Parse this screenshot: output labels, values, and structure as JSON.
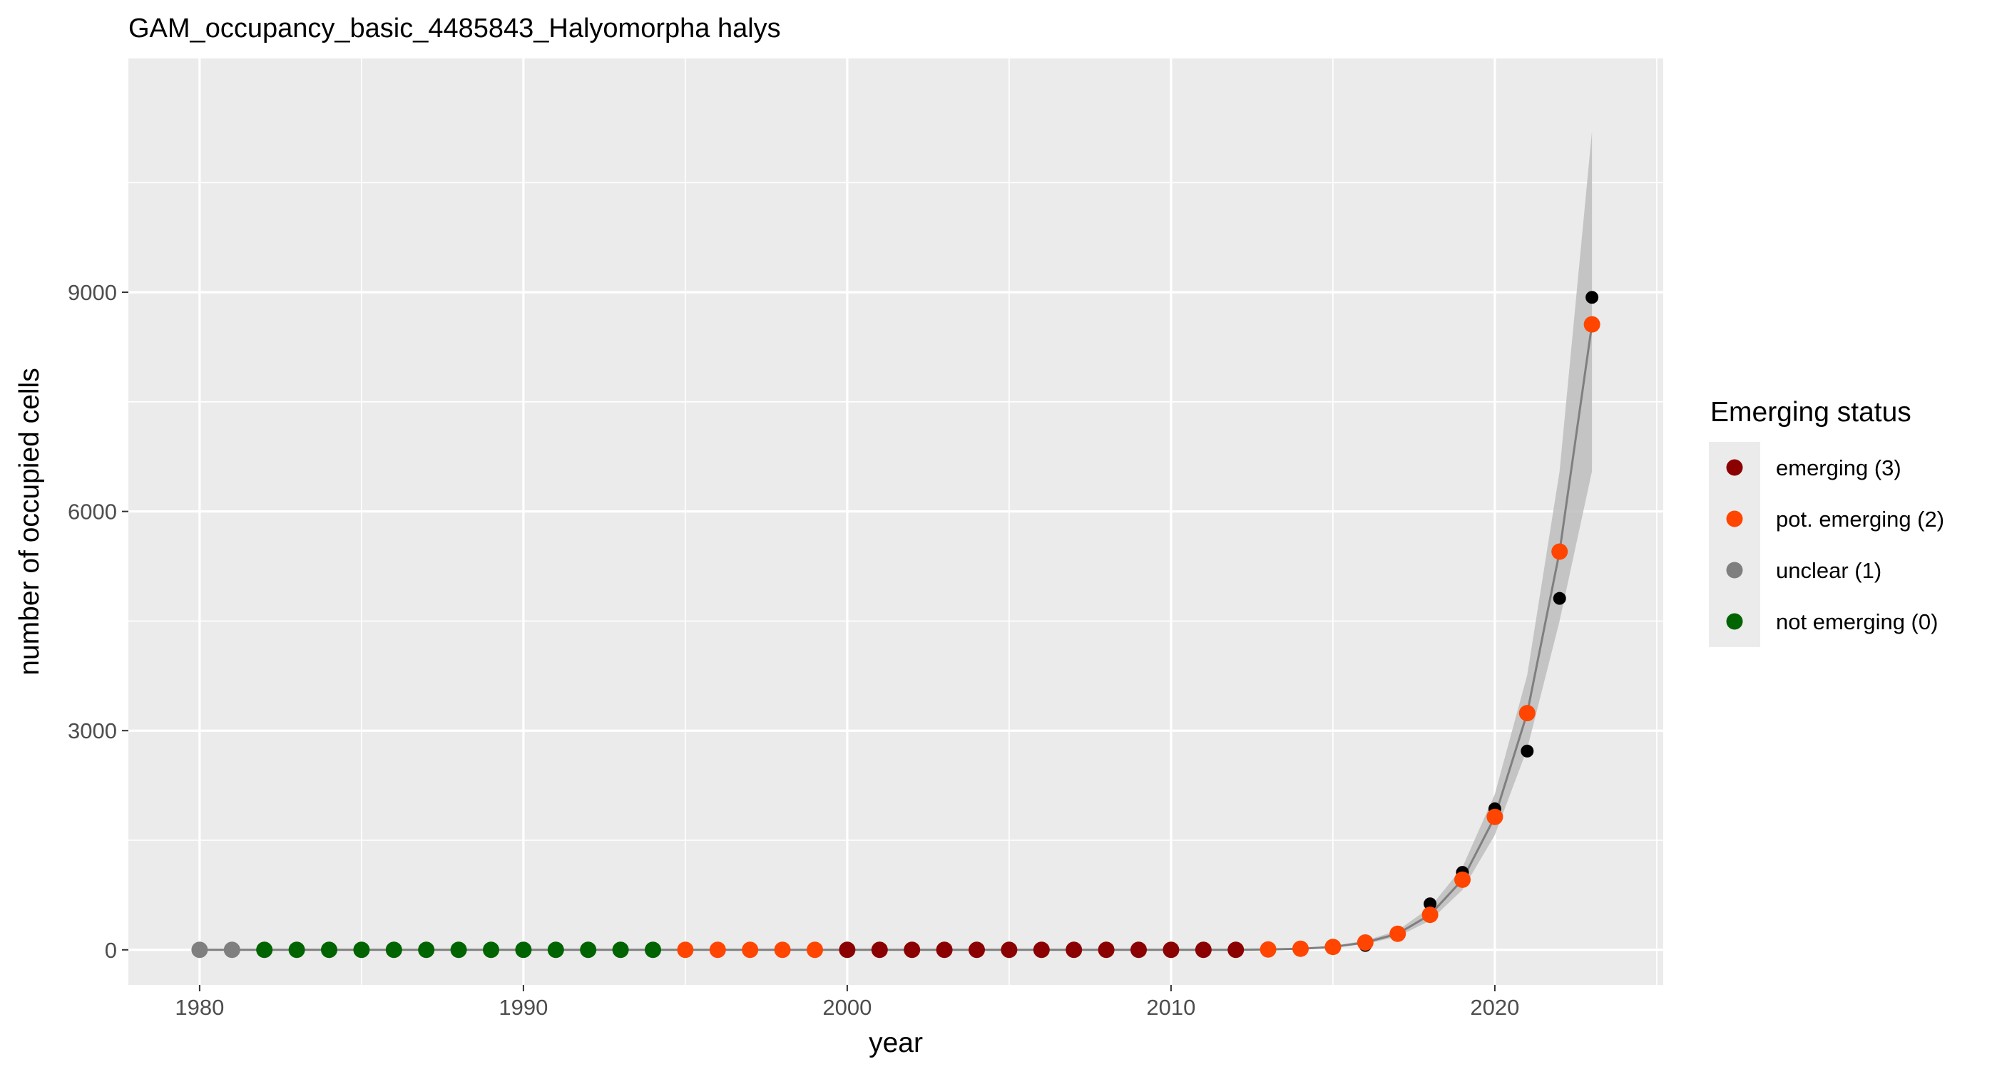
{
  "chart_data": {
    "type": "scatter",
    "title": "GAM_occupancy_basic_4485843_Halyomorpha halys",
    "xlabel": "year",
    "ylabel": "number of occupied cells",
    "xlim": [
      1977.8,
      2025.2
    ],
    "ylim": [
      -480,
      12200
    ],
    "x_ticks": [
      1980,
      1990,
      2000,
      2010,
      2020
    ],
    "y_ticks": [
      0,
      3000,
      6000,
      9000
    ],
    "grid": true,
    "legend": {
      "title": "Emerging status",
      "position": "right",
      "entries": [
        {
          "label": "emerging (3)",
          "color": "#8b0000"
        },
        {
          "label": "pot. emerging (2)",
          "color": "#ff4500"
        },
        {
          "label": "unclear (1)",
          "color": "#7f7f7f"
        },
        {
          "label": "not emerging (0)",
          "color": "#006400"
        }
      ]
    },
    "status_colors": {
      "3": "#8b0000",
      "2": "#ff4500",
      "1": "#7f7f7f",
      "0": "#006400"
    },
    "observed_color": "#000000",
    "fit_color": "#7f7f7f",
    "band_color": "#bdbdbd",
    "observed": {
      "x": [
        1980,
        1981,
        1982,
        1983,
        1984,
        1985,
        1986,
        1987,
        1988,
        1989,
        1990,
        1991,
        1992,
        1993,
        1994,
        1995,
        1996,
        1997,
        1998,
        1999,
        2000,
        2001,
        2002,
        2003,
        2004,
        2005,
        2006,
        2007,
        2008,
        2009,
        2010,
        2011,
        2012,
        2013,
        2014,
        2015,
        2016,
        2017,
        2018,
        2019,
        2020,
        2021,
        2022,
        2023
      ],
      "y": [
        0,
        0,
        0,
        0,
        0,
        0,
        0,
        0,
        0,
        0,
        0,
        0,
        0,
        0,
        0,
        0,
        0,
        0,
        0,
        0,
        0,
        0,
        0,
        0,
        0,
        0,
        0,
        0,
        0,
        0,
        0,
        0,
        0,
        5,
        10,
        20,
        60,
        200,
        630,
        1060,
        1930,
        2720,
        4810,
        8930
      ]
    },
    "fit": {
      "x": [
        1980,
        1981,
        1982,
        1983,
        1984,
        1985,
        1986,
        1987,
        1988,
        1989,
        1990,
        1991,
        1992,
        1993,
        1994,
        1995,
        1996,
        1997,
        1998,
        1999,
        2000,
        2001,
        2002,
        2003,
        2004,
        2005,
        2006,
        2007,
        2008,
        2009,
        2010,
        2011,
        2012,
        2013,
        2014,
        2015,
        2016,
        2017,
        2018,
        2019,
        2020,
        2021,
        2022,
        2023
      ],
      "y": [
        0,
        0,
        0,
        0,
        0,
        0,
        0,
        0,
        0,
        0,
        0,
        0,
        0,
        0,
        0,
        0,
        0,
        0,
        0,
        0,
        0,
        0,
        0,
        0,
        0,
        0,
        0,
        0,
        0,
        0,
        0,
        0,
        0,
        5,
        15,
        40,
        100,
        220,
        480,
        960,
        1820,
        3240,
        5450,
        8560
      ],
      "lower": [
        0,
        0,
        0,
        0,
        0,
        0,
        0,
        0,
        0,
        0,
        0,
        0,
        0,
        0,
        0,
        0,
        0,
        0,
        0,
        0,
        0,
        0,
        0,
        0,
        0,
        0,
        0,
        0,
        0,
        0,
        0,
        0,
        0,
        3,
        10,
        30,
        80,
        180,
        400,
        820,
        1570,
        2750,
        4500,
        6550
      ],
      "upper": [
        0,
        0,
        0,
        0,
        0,
        0,
        0,
        0,
        0,
        0,
        0,
        0,
        0,
        0,
        0,
        0,
        0,
        0,
        0,
        0,
        0,
        0,
        0,
        0,
        0,
        0,
        0,
        0,
        0,
        0,
        0,
        0,
        0,
        7,
        20,
        55,
        125,
        265,
        580,
        1130,
        2130,
        3760,
        6550,
        11200
      ],
      "status": [
        1,
        1,
        0,
        0,
        0,
        0,
        0,
        0,
        0,
        0,
        0,
        0,
        0,
        0,
        0,
        2,
        2,
        2,
        2,
        2,
        3,
        3,
        3,
        3,
        3,
        3,
        3,
        3,
        3,
        3,
        3,
        3,
        3,
        2,
        2,
        2,
        2,
        2,
        2,
        2,
        2,
        2,
        2,
        2
      ]
    }
  }
}
